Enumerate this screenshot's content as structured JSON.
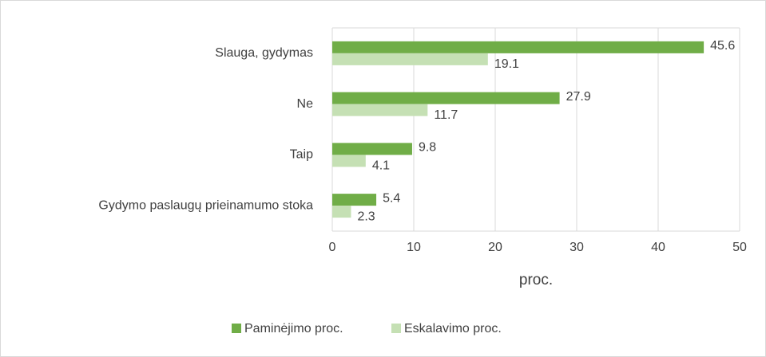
{
  "chart_data": {
    "type": "bar",
    "orientation": "horizontal",
    "categories": [
      "Slauga, gydymas",
      "Ne",
      "Taip",
      "Gydymo paslaugų prieinamumo stoka"
    ],
    "series": [
      {
        "name": "Paminėjimo proc.",
        "color": "#70ad47",
        "values": [
          45.6,
          27.9,
          9.8,
          5.4
        ]
      },
      {
        "name": "Eskalavimo proc.",
        "color": "#c5e0b4",
        "values": [
          19.1,
          11.7,
          4.1,
          2.3
        ]
      }
    ],
    "xlabel": "proc.",
    "xlim": [
      0,
      50
    ],
    "xticks": [
      0,
      10,
      20,
      30,
      40,
      50
    ],
    "grid": true,
    "legend": "bottom"
  }
}
